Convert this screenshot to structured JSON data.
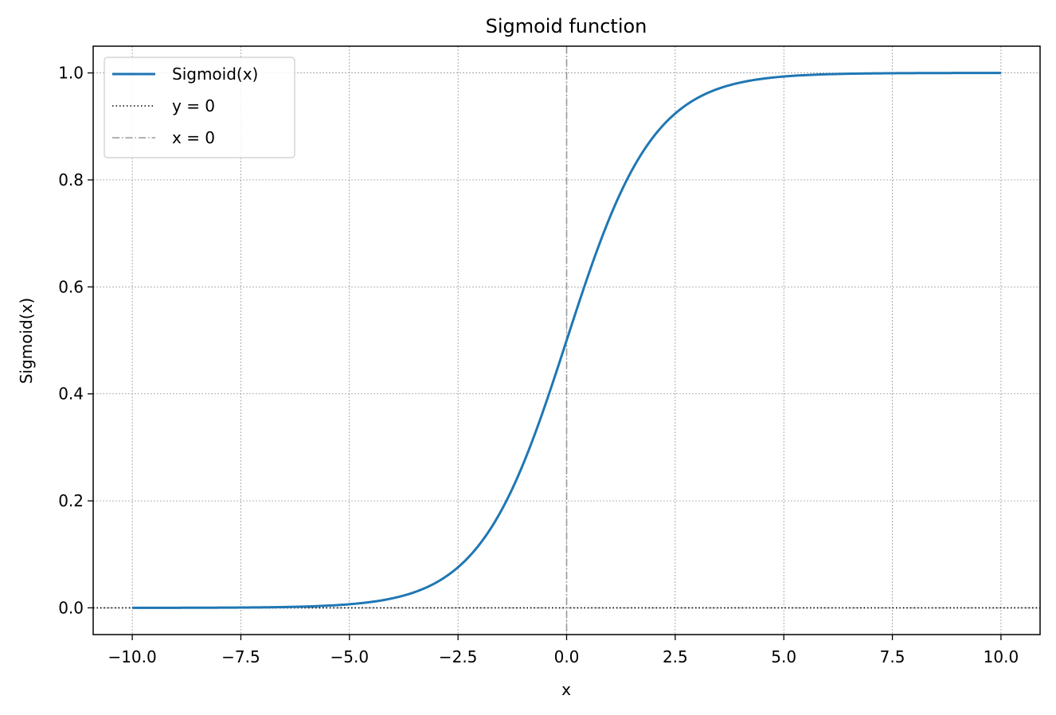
{
  "chart_data": {
    "type": "line",
    "title": "Sigmoid function",
    "xlabel": "x",
    "ylabel": "Sigmoid(x)",
    "xlim": [
      -10.9,
      10.9
    ],
    "ylim": [
      -0.05,
      1.05
    ],
    "x_ticks": [
      -10.0,
      -7.5,
      -5.0,
      -2.5,
      0.0,
      2.5,
      5.0,
      7.5,
      10.0
    ],
    "x_tick_labels": [
      "−10.0",
      "−7.5",
      "−5.0",
      "−2.5",
      "0.0",
      "2.5",
      "5.0",
      "7.5",
      "10.0"
    ],
    "y_ticks": [
      0.0,
      0.2,
      0.4,
      0.6,
      0.8,
      1.0
    ],
    "y_tick_labels": [
      "0.0",
      "0.2",
      "0.4",
      "0.6",
      "0.8",
      "1.0"
    ],
    "grid": true,
    "legend_position": "top-left",
    "series": [
      {
        "name": "Sigmoid(x)",
        "color": "#1f77b4",
        "style": "solid",
        "function": "sigmoid",
        "x": [
          -10.0,
          -9.0,
          -8.0,
          -7.0,
          -6.0,
          -5.0,
          -4.5,
          -4.0,
          -3.5,
          -3.0,
          -2.75,
          -2.5,
          -2.25,
          -2.0,
          -1.75,
          -1.5,
          -1.25,
          -1.0,
          -0.75,
          -0.5,
          -0.25,
          0.0,
          0.25,
          0.5,
          0.75,
          1.0,
          1.25,
          1.5,
          1.75,
          2.0,
          2.25,
          2.5,
          2.75,
          3.0,
          3.5,
          4.0,
          4.5,
          5.0,
          6.0,
          7.0,
          8.0,
          9.0,
          10.0
        ],
        "y": [
          0.0,
          0.0001,
          0.0003,
          0.0009,
          0.0025,
          0.0067,
          0.011,
          0.018,
          0.0293,
          0.0474,
          0.0601,
          0.0759,
          0.0953,
          0.1192,
          0.148,
          0.1824,
          0.2227,
          0.2689,
          0.3208,
          0.3775,
          0.4378,
          0.5,
          0.5622,
          0.6225,
          0.6792,
          0.7311,
          0.7773,
          0.8176,
          0.852,
          0.8808,
          0.9047,
          0.9241,
          0.9399,
          0.9526,
          0.9707,
          0.982,
          0.989,
          0.9933,
          0.9975,
          0.9991,
          0.9997,
          0.9999,
          1.0
        ]
      },
      {
        "name": "y = 0",
        "color": "#000000",
        "style": "dotted",
        "orientation": "horizontal",
        "value": 0.0
      },
      {
        "name": "x = 0",
        "color": "#999999",
        "style": "dashdot",
        "orientation": "vertical",
        "value": 0.0
      }
    ]
  }
}
